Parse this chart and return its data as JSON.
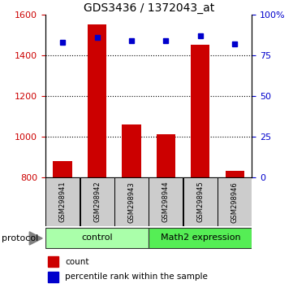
{
  "title": "GDS3436 / 1372043_at",
  "samples": [
    "GSM298941",
    "GSM298942",
    "GSM298943",
    "GSM298944",
    "GSM298945",
    "GSM298946"
  ],
  "count_values": [
    880,
    1550,
    1060,
    1010,
    1450,
    830
  ],
  "percentile_values": [
    83,
    86,
    84,
    84,
    87,
    82
  ],
  "ylim_left": [
    800,
    1600
  ],
  "ylim_right": [
    0,
    100
  ],
  "yticks_left": [
    800,
    1000,
    1200,
    1400,
    1600
  ],
  "yticks_right": [
    0,
    25,
    50,
    75,
    100
  ],
  "bar_color": "#cc0000",
  "bar_bottom": 800,
  "dot_color": "#0000cc",
  "groups": [
    {
      "label": "control",
      "color": "#aaffaa"
    },
    {
      "label": "Math2 expression",
      "color": "#55ee55"
    }
  ],
  "group_label_prefix": "protocol",
  "legend_count_label": "count",
  "legend_pct_label": "percentile rank within the sample",
  "sample_box_color": "#cccccc",
  "title_fontsize": 10,
  "tick_fontsize": 8,
  "sample_fontsize": 6,
  "group_fontsize": 8,
  "legend_fontsize": 7.5
}
